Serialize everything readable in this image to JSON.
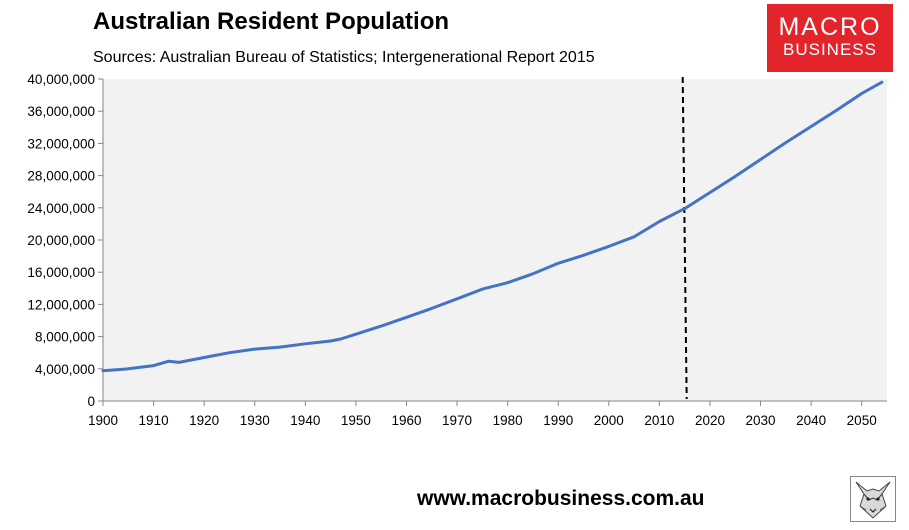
{
  "header": {
    "title": "Australian Resident Population",
    "subtitle": "Sources: Australian Bureau of Statistics; Intergenerational Report 2015"
  },
  "logo": {
    "line1": "MACRO",
    "line2": "BUSINESS",
    "color": "#e4242b"
  },
  "footer": {
    "url": "www.macrobusiness.com.au",
    "emblem_icon": "fox-emblem-icon"
  },
  "colors": {
    "line": "#4472c4",
    "plot_bg": "#f2f2f2",
    "marker": "#000000"
  },
  "chart_data": {
    "type": "line",
    "title": "Australian Resident Population",
    "xlabel": "",
    "ylabel": "",
    "xlim": [
      1900,
      2055
    ],
    "ylim": [
      0,
      40000000
    ],
    "x_ticks": [
      1900,
      1910,
      1920,
      1930,
      1940,
      1950,
      1960,
      1970,
      1980,
      1990,
      2000,
      2010,
      2020,
      2030,
      2040,
      2050
    ],
    "y_ticks": [
      0,
      4000000,
      8000000,
      12000000,
      16000000,
      20000000,
      24000000,
      28000000,
      32000000,
      36000000,
      40000000
    ],
    "y_tick_labels": [
      "0",
      "4,000,000",
      "8,000,000",
      "12,000,000",
      "16,000,000",
      "20,000,000",
      "24,000,000",
      "28,000,000",
      "32,000,000",
      "36,000,000",
      "40,000,000"
    ],
    "grid": false,
    "legend": "none",
    "annotation": {
      "type": "vertical-dashed-line",
      "x": 2015,
      "meaning": "boundary between historical data and projection"
    },
    "series": [
      {
        "name": "Australian Resident Population",
        "x": [
          1900,
          1905,
          1910,
          1913,
          1915,
          1920,
          1925,
          1930,
          1935,
          1940,
          1945,
          1947,
          1950,
          1955,
          1960,
          1965,
          1970,
          1975,
          1980,
          1985,
          1990,
          1995,
          2000,
          2005,
          2010,
          2015,
          2020,
          2025,
          2030,
          2035,
          2040,
          2045,
          2050,
          2054
        ],
        "values": [
          3750000,
          4000000,
          4400000,
          4950000,
          4800000,
          5400000,
          6000000,
          6450000,
          6700000,
          7100000,
          7450000,
          7700000,
          8300000,
          9300000,
          10400000,
          11500000,
          12700000,
          13900000,
          14700000,
          15800000,
          17100000,
          18100000,
          19200000,
          20400000,
          22300000,
          23900000,
          25900000,
          27900000,
          30000000,
          32100000,
          34100000,
          36100000,
          38200000,
          39600000
        ]
      }
    ]
  }
}
